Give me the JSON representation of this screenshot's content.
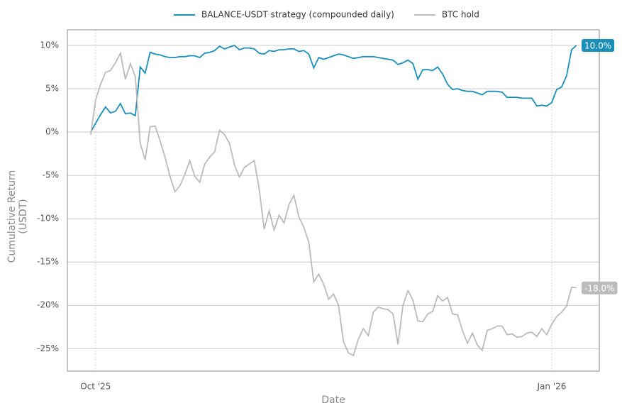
{
  "chart_data": {
    "type": "line",
    "xlabel": "Date",
    "ylabel": [
      "Cumulative Return",
      "(USDT)"
    ],
    "xlim": [
      -4.7,
      102.6
    ],
    "xticks": [
      {
        "value": 1,
        "label": "Oct '25"
      },
      {
        "value": 93,
        "label": "Jan '26"
      }
    ],
    "ylim": [
      -27.6,
      11.8
    ],
    "yticks": [
      {
        "value": -25,
        "label": "-25%"
      },
      {
        "value": -20,
        "label": "-20%"
      },
      {
        "value": -15,
        "label": "-15%"
      },
      {
        "value": -10,
        "label": "-10%"
      },
      {
        "value": -5,
        "label": "-5%"
      },
      {
        "value": 0,
        "label": "0%"
      },
      {
        "value": 5,
        "label": "5%"
      },
      {
        "value": 10,
        "label": "10%"
      }
    ],
    "grid": true,
    "legend": "top",
    "series": [
      {
        "name": "BALANCE-USDT strategy (compounded daily)",
        "color": "#1a8fba",
        "values": [
          0.0,
          1.0,
          2.0,
          2.9,
          2.2,
          2.4,
          3.3,
          2.1,
          2.2,
          1.9,
          7.5,
          6.8,
          9.2,
          9.0,
          8.9,
          8.7,
          8.6,
          8.6,
          8.7,
          8.7,
          8.8,
          8.8,
          8.6,
          9.1,
          9.2,
          9.4,
          9.9,
          9.6,
          9.8,
          10.0,
          9.5,
          9.7,
          9.7,
          9.6,
          9.1,
          9.0,
          9.4,
          9.3,
          9.5,
          9.5,
          9.6,
          9.6,
          9.3,
          9.4,
          9.0,
          7.4,
          8.6,
          8.4,
          8.6,
          8.8,
          9.0,
          8.9,
          8.7,
          8.5,
          8.6,
          8.7,
          8.7,
          8.7,
          8.6,
          8.5,
          8.4,
          8.3,
          7.8,
          8.0,
          8.3,
          7.9,
          6.1,
          7.2,
          7.2,
          7.1,
          7.5,
          6.7,
          5.5,
          4.9,
          5.0,
          4.8,
          4.7,
          4.7,
          4.5,
          4.3,
          4.7,
          4.7,
          4.7,
          4.6,
          4.0,
          4.0,
          4.0,
          3.9,
          3.9,
          3.9,
          3.0,
          3.1,
          3.0,
          3.4,
          4.9,
          5.2,
          6.5,
          9.5,
          10.0
        ],
        "value_labels": {
          "98": "10.0%"
        }
      },
      {
        "name": "BTC hold",
        "color": "#bbbbbb",
        "values": [
          -0.3,
          3.7,
          5.5,
          6.9,
          7.1,
          8.0,
          9.1,
          6.1,
          7.9,
          6.4,
          -1.3,
          -3.2,
          0.6,
          0.7,
          -1.0,
          -2.9,
          -5.1,
          -6.9,
          -6.2,
          -4.9,
          -3.3,
          -5.1,
          -5.8,
          -3.7,
          -2.9,
          -2.3,
          0.2,
          -0.3,
          -1.3,
          -3.8,
          -5.2,
          -4.1,
          -3.7,
          -3.3,
          -6.6,
          -11.2,
          -9.1,
          -11.3,
          -9.6,
          -10.5,
          -8.4,
          -7.3,
          -9.8,
          -11.0,
          -12.7,
          -17.3,
          -16.4,
          -17.6,
          -19.3,
          -18.7,
          -20.0,
          -24.2,
          -25.5,
          -25.8,
          -23.9,
          -22.7,
          -23.5,
          -20.8,
          -20.2,
          -20.4,
          -20.5,
          -21.0,
          -24.5,
          -20.0,
          -18.3,
          -19.4,
          -21.8,
          -21.9,
          -21.0,
          -20.7,
          -18.9,
          -19.5,
          -19.1,
          -21.0,
          -21.1,
          -22.9,
          -24.4,
          -23.2,
          -24.6,
          -25.2,
          -22.9,
          -22.7,
          -22.4,
          -22.4,
          -23.4,
          -23.3,
          -23.7,
          -23.6,
          -23.2,
          -23.1,
          -23.6,
          -22.7,
          -23.4,
          -22.2,
          -21.3,
          -20.8,
          -20.1,
          -17.9,
          -18.0
        ],
        "value_labels": {
          "98": "-18.0%"
        }
      }
    ]
  }
}
